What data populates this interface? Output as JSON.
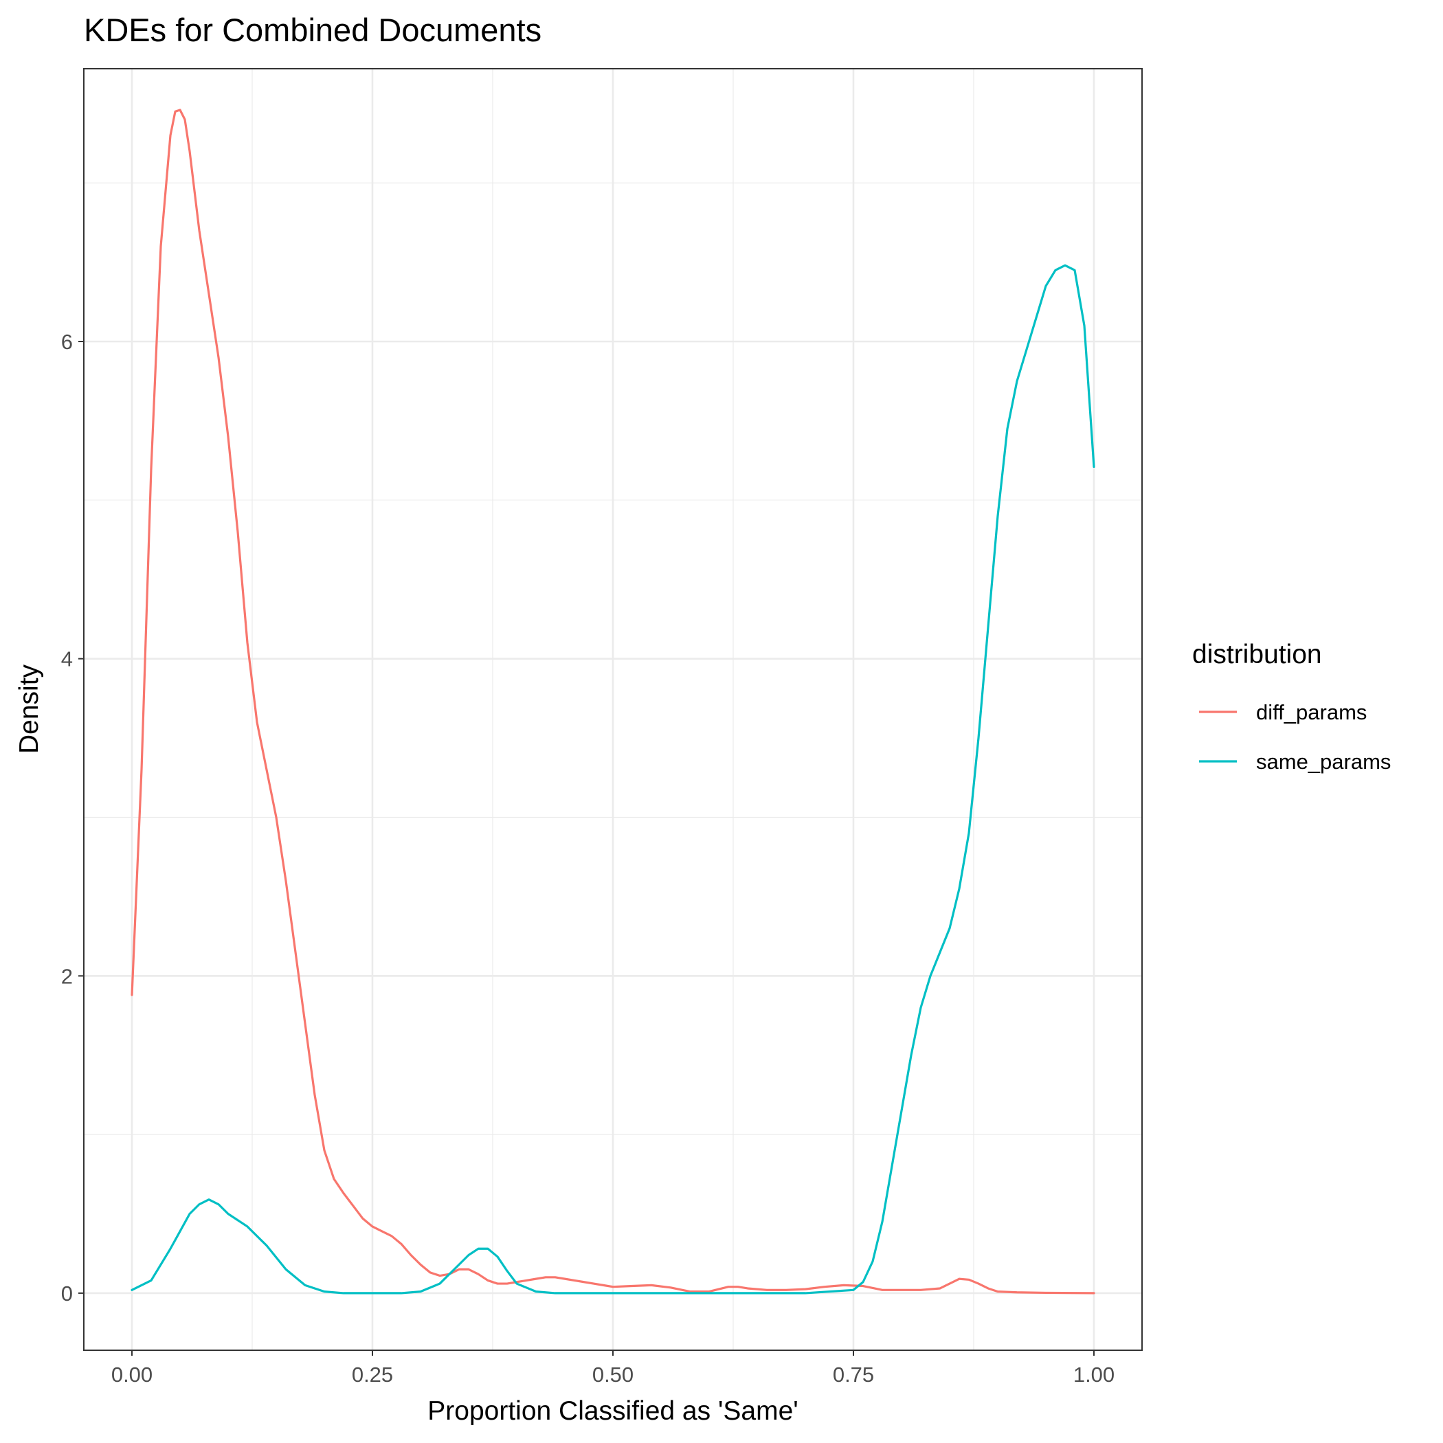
{
  "chart_data": {
    "type": "line",
    "title": "KDEs for Combined Documents",
    "xlabel": "Proportion Classified as 'Same'",
    "ylabel": "Density",
    "xlim": [
      -0.05,
      1.05
    ],
    "ylim": [
      -0.36,
      7.72
    ],
    "x_ticks": [
      0.0,
      0.25,
      0.5,
      0.75,
      1.0
    ],
    "x_tick_labels": [
      "0.00",
      "0.25",
      "0.50",
      "0.75",
      "1.00"
    ],
    "y_ticks": [
      0,
      2,
      4,
      6
    ],
    "y_tick_labels": [
      "0",
      "2",
      "4",
      "6"
    ],
    "grid": true,
    "legend": {
      "title": "distribution",
      "position": "right"
    },
    "series": [
      {
        "name": "diff_params",
        "color": "#F8766D",
        "x": [
          0.0,
          0.01,
          0.02,
          0.03,
          0.04,
          0.045,
          0.05,
          0.055,
          0.06,
          0.07,
          0.08,
          0.09,
          0.1,
          0.11,
          0.12,
          0.13,
          0.14,
          0.15,
          0.16,
          0.17,
          0.18,
          0.19,
          0.2,
          0.21,
          0.22,
          0.23,
          0.24,
          0.25,
          0.26,
          0.27,
          0.28,
          0.29,
          0.3,
          0.31,
          0.32,
          0.33,
          0.34,
          0.35,
          0.36,
          0.37,
          0.38,
          0.39,
          0.4,
          0.41,
          0.42,
          0.43,
          0.44,
          0.45,
          0.46,
          0.47,
          0.48,
          0.49,
          0.5,
          0.52,
          0.54,
          0.56,
          0.58,
          0.6,
          0.62,
          0.63,
          0.64,
          0.66,
          0.68,
          0.7,
          0.72,
          0.74,
          0.76,
          0.78,
          0.8,
          0.82,
          0.84,
          0.85,
          0.86,
          0.87,
          0.88,
          0.89,
          0.9,
          0.92,
          0.95,
          1.0
        ],
        "values": [
          1.88,
          3.3,
          5.2,
          6.6,
          7.3,
          7.45,
          7.46,
          7.4,
          7.2,
          6.7,
          6.3,
          5.9,
          5.4,
          4.8,
          4.1,
          3.6,
          3.3,
          3.0,
          2.6,
          2.15,
          1.7,
          1.25,
          0.9,
          0.72,
          0.63,
          0.55,
          0.47,
          0.42,
          0.39,
          0.36,
          0.31,
          0.24,
          0.18,
          0.13,
          0.11,
          0.12,
          0.15,
          0.15,
          0.12,
          0.08,
          0.06,
          0.06,
          0.07,
          0.08,
          0.09,
          0.1,
          0.1,
          0.09,
          0.08,
          0.07,
          0.06,
          0.05,
          0.04,
          0.045,
          0.05,
          0.035,
          0.01,
          0.01,
          0.04,
          0.04,
          0.03,
          0.02,
          0.02,
          0.025,
          0.04,
          0.05,
          0.045,
          0.02,
          0.02,
          0.02,
          0.03,
          0.06,
          0.09,
          0.085,
          0.06,
          0.03,
          0.01,
          0.005,
          0.002,
          0.0
        ]
      },
      {
        "name": "same_params",
        "color": "#00BFC4",
        "x": [
          0.0,
          0.02,
          0.04,
          0.06,
          0.07,
          0.08,
          0.09,
          0.1,
          0.12,
          0.14,
          0.16,
          0.18,
          0.2,
          0.22,
          0.25,
          0.28,
          0.3,
          0.32,
          0.34,
          0.35,
          0.36,
          0.37,
          0.38,
          0.39,
          0.4,
          0.42,
          0.44,
          0.5,
          0.6,
          0.7,
          0.75,
          0.76,
          0.77,
          0.78,
          0.79,
          0.8,
          0.81,
          0.82,
          0.83,
          0.84,
          0.85,
          0.86,
          0.87,
          0.88,
          0.89,
          0.9,
          0.91,
          0.92,
          0.93,
          0.94,
          0.95,
          0.96,
          0.97,
          0.98,
          0.99,
          1.0
        ],
        "values": [
          0.02,
          0.08,
          0.28,
          0.5,
          0.56,
          0.59,
          0.56,
          0.5,
          0.42,
          0.3,
          0.15,
          0.05,
          0.01,
          0.0,
          0.0,
          0.0,
          0.01,
          0.06,
          0.18,
          0.24,
          0.28,
          0.28,
          0.23,
          0.14,
          0.06,
          0.01,
          0.0,
          0.0,
          0.0,
          0.0,
          0.02,
          0.07,
          0.2,
          0.45,
          0.8,
          1.15,
          1.5,
          1.8,
          2.0,
          2.15,
          2.3,
          2.55,
          2.9,
          3.5,
          4.2,
          4.9,
          5.45,
          5.75,
          5.95,
          6.15,
          6.35,
          6.45,
          6.48,
          6.45,
          6.1,
          5.21
        ]
      }
    ]
  }
}
